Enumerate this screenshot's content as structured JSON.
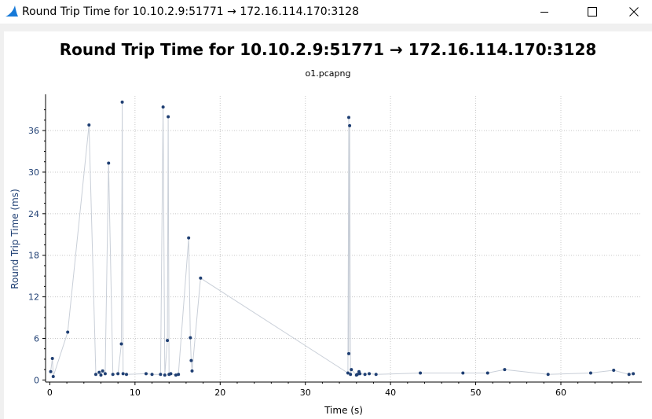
{
  "window": {
    "title": "Round Trip Time for 10.10.2.9:51771 → 172.16.114.170:3128",
    "app_icon": "wireshark-fin-icon",
    "buttons": {
      "minimize_icon": "minimize-icon",
      "maximize_icon": "maximize-icon",
      "close_icon": "close-icon"
    }
  },
  "colors": {
    "series": "#1f3f73",
    "line": "#c9cfd8",
    "grid": "#c8c8c8",
    "axis": "#000000"
  },
  "chart_data": {
    "type": "scatter",
    "title": "Round Trip Time for 10.10.2.9:51771 → 172.16.114.170:3128",
    "subtitle": "o1.pcapng",
    "xlabel": "Time (s)",
    "ylabel": "Round Trip Time (ms)",
    "xlim": [
      -0.5,
      69.5
    ],
    "ylim": [
      -0.3,
      41
    ],
    "xticks": [
      0,
      10,
      20,
      30,
      40,
      50,
      60
    ],
    "yticks": [
      0,
      6,
      12,
      18,
      24,
      30,
      36
    ],
    "grid": true,
    "connected_line": true,
    "series": [
      {
        "x": [
          0.1,
          0.3,
          0.4,
          2.1,
          4.6,
          5.4,
          5.8,
          6.0,
          6.2,
          6.5,
          6.9,
          7.4,
          8.0,
          8.4,
          8.5,
          8.6,
          9.0,
          11.3,
          12.0,
          13.0,
          13.3,
          13.5,
          13.8,
          13.9,
          14.0,
          14.2,
          14.8,
          15.1,
          16.3,
          16.5,
          16.6,
          16.7,
          17.7,
          35.0,
          35.1,
          35.1,
          35.2,
          35.3,
          35.4,
          36.0,
          36.1,
          36.3,
          36.4,
          37.0,
          37.5,
          38.3,
          43.5,
          48.5,
          51.4,
          53.4,
          58.5,
          63.5,
          66.2,
          68.0,
          68.5
        ],
        "y": [
          1.2,
          3.1,
          0.5,
          6.9,
          36.8,
          0.8,
          1.1,
          0.7,
          1.3,
          0.9,
          31.3,
          0.8,
          0.9,
          5.2,
          40.1,
          0.9,
          0.8,
          0.9,
          0.8,
          0.8,
          39.4,
          0.7,
          5.7,
          38.0,
          0.8,
          0.9,
          0.7,
          0.8,
          20.5,
          6.1,
          2.8,
          1.3,
          14.7,
          1.0,
          37.9,
          3.8,
          36.7,
          0.8,
          1.5,
          0.7,
          0.8,
          1.2,
          0.9,
          0.8,
          0.9,
          0.8,
          1.0,
          1.0,
          1.0,
          1.5,
          0.8,
          1.0,
          1.4,
          0.8,
          0.9
        ]
      }
    ]
  }
}
